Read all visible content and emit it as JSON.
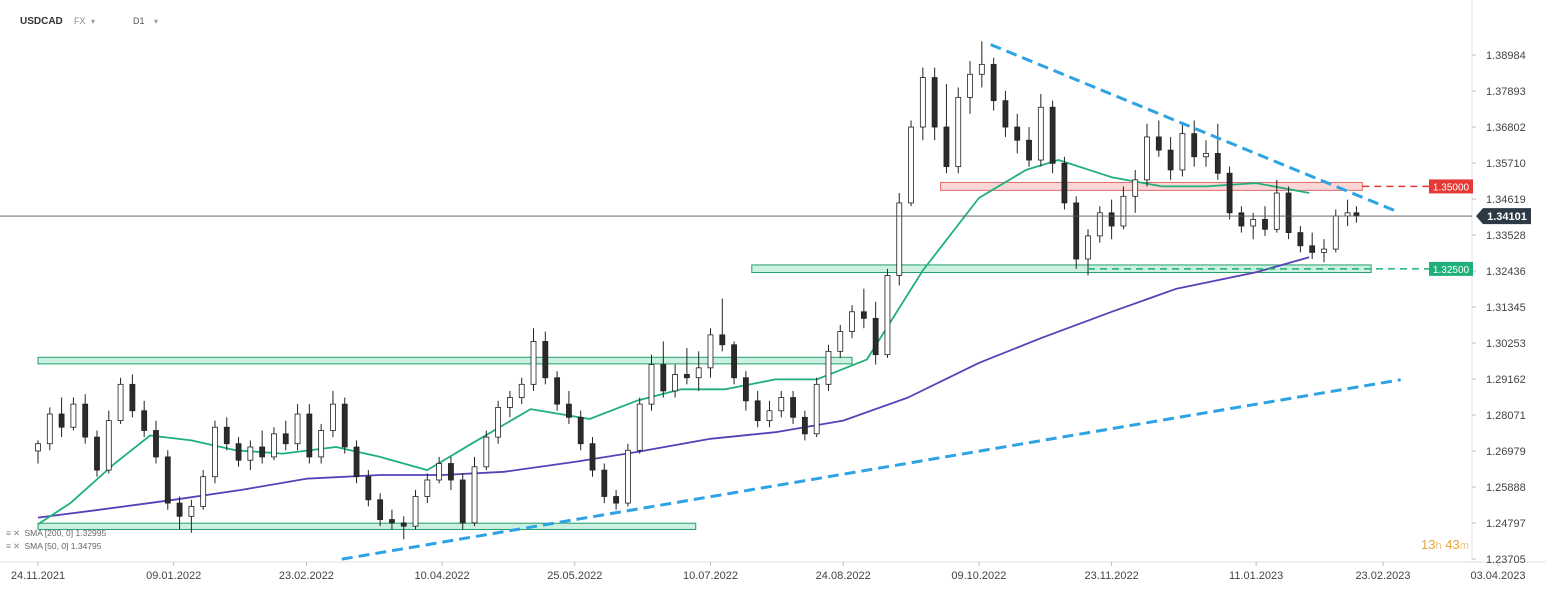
{
  "header": {
    "symbol": "USDCAD",
    "market": "FX",
    "timeframe": "D1"
  },
  "indicators": [
    {
      "label": "SMA [200, 0] 1.32995",
      "color": "#5b3fb8"
    },
    {
      "label": "SMA [50, 0] 1.34795",
      "color": "#1fb07a"
    }
  ],
  "timer": {
    "hours": "13",
    "h_unit": "h",
    "minutes": "43",
    "m_unit": "m"
  },
  "chart_data": {
    "type": "candlestick",
    "instrument": "USDCAD",
    "timeframe": "D1",
    "y_ticks": [
      "1.38984",
      "1.37893",
      "1.36802",
      "1.35710",
      "1.34619",
      "1.33528",
      "1.32436",
      "1.31345",
      "1.30253",
      "1.29162",
      "1.28071",
      "1.26979",
      "1.25888",
      "1.24797",
      "1.23705"
    ],
    "x_ticks": [
      "24.11.2021",
      "09.01.2022",
      "23.02.2022",
      "10.04.2022",
      "25.05.2022",
      "10.07.2022",
      "24.08.2022",
      "09.10.2022",
      "23.11.2022",
      "11.01.2023",
      "23.02.2023",
      "03.04.2023"
    ],
    "last_price": "1.34101",
    "price_tags": [
      {
        "label": "1.35000",
        "value": 1.35,
        "color": "#e53935"
      },
      {
        "label": "1.32500",
        "value": 1.325,
        "color": "#1fb07a"
      }
    ],
    "zones": [
      {
        "kind": "resistance",
        "from_date": "2022-09-26",
        "to_date": "2023-02-16",
        "low": 1.3488,
        "high": 1.3512,
        "color": "#f3a5a5"
      },
      {
        "kind": "support",
        "from_date": "2022-07-24",
        "to_date": "2023-02-19",
        "low": 1.3239,
        "high": 1.3262,
        "color": "#8fe0bd"
      },
      {
        "kind": "support",
        "from_date": "2021-11-24",
        "to_date": "2022-08-27",
        "low": 1.2962,
        "high": 1.2982,
        "color": "#8fe0bd"
      },
      {
        "kind": "support",
        "from_date": "2021-11-24",
        "to_date": "2022-07-05",
        "low": 1.246,
        "high": 1.2479,
        "color": "#8fe0bd"
      }
    ],
    "trendlines": [
      {
        "name": "downtrend",
        "p1": [
          "2022-10-13",
          1.393
        ],
        "p2": [
          "2023-02-28",
          1.3423
        ]
      },
      {
        "name": "uptrend",
        "p1": [
          "2022-03-07",
          1.237
        ],
        "p2": [
          "2023-03-01",
          1.2914
        ]
      }
    ],
    "levels": [
      {
        "value": 1.35,
        "from_date": "2023-02-16",
        "to_date": "2023-03-16",
        "color": "#e53935"
      },
      {
        "value": 1.325,
        "from_date": "2022-11-15",
        "to_date": "2023-03-16",
        "color": "#1fb07a"
      }
    ],
    "sma200": [
      [
        "2021-11-24",
        1.2496
      ],
      [
        "2021-12-15",
        1.252
      ],
      [
        "2022-01-09",
        1.255
      ],
      [
        "2022-02-01",
        1.258
      ],
      [
        "2022-02-23",
        1.2614
      ],
      [
        "2022-03-20",
        1.2625
      ],
      [
        "2022-04-10",
        1.2625
      ],
      [
        "2022-05-01",
        1.2635
      ],
      [
        "2022-05-25",
        1.2665
      ],
      [
        "2022-06-15",
        1.2695
      ],
      [
        "2022-07-10",
        1.2735
      ],
      [
        "2022-08-01",
        1.2755
      ],
      [
        "2022-08-24",
        1.279
      ],
      [
        "2022-09-15",
        1.286
      ],
      [
        "2022-10-09",
        1.2965
      ],
      [
        "2022-10-30",
        1.304
      ],
      [
        "2022-11-23",
        1.312
      ],
      [
        "2022-12-15",
        1.319
      ],
      [
        "2023-01-11",
        1.324
      ],
      [
        "2023-01-29",
        1.3285
      ]
    ],
    "sma50": [
      [
        "2021-11-24",
        1.2476
      ],
      [
        "2021-12-05",
        1.254
      ],
      [
        "2021-12-20",
        1.266
      ],
      [
        "2022-01-01",
        1.2745
      ],
      [
        "2022-01-15",
        1.273
      ],
      [
        "2022-01-30",
        1.27
      ],
      [
        "2022-02-15",
        1.269
      ],
      [
        "2022-03-05",
        1.271
      ],
      [
        "2022-03-20",
        1.268
      ],
      [
        "2022-04-05",
        1.264
      ],
      [
        "2022-04-20",
        1.272
      ],
      [
        "2022-05-10",
        1.2825
      ],
      [
        "2022-05-30",
        1.2795
      ],
      [
        "2022-06-15",
        1.285
      ],
      [
        "2022-06-30",
        1.2885
      ],
      [
        "2022-07-15",
        1.2885
      ],
      [
        "2022-08-01",
        1.2915
      ],
      [
        "2022-08-15",
        1.2915
      ],
      [
        "2022-09-01",
        1.2975
      ],
      [
        "2022-09-20",
        1.3245
      ],
      [
        "2022-10-09",
        1.3465
      ],
      [
        "2022-10-25",
        1.355
      ],
      [
        "2022-11-05",
        1.358
      ],
      [
        "2022-11-23",
        1.3528
      ],
      [
        "2022-12-10",
        1.35
      ],
      [
        "2022-12-25",
        1.35
      ],
      [
        "2023-01-11",
        1.351
      ],
      [
        "2023-01-29",
        1.348
      ]
    ],
    "candles": [
      [
        "2021-11-24",
        1.2698,
        1.273,
        1.266,
        1.272
      ],
      [
        "2021-11-28",
        1.272,
        1.283,
        1.27,
        1.281
      ],
      [
        "2021-12-02",
        1.281,
        1.286,
        1.274,
        1.277
      ],
      [
        "2021-12-06",
        1.277,
        1.286,
        1.276,
        1.284
      ],
      [
        "2021-12-10",
        1.284,
        1.287,
        1.272,
        1.274
      ],
      [
        "2021-12-14",
        1.274,
        1.276,
        1.262,
        1.264
      ],
      [
        "2021-12-18",
        1.264,
        1.282,
        1.263,
        1.279
      ],
      [
        "2021-12-22",
        1.279,
        1.292,
        1.278,
        1.29
      ],
      [
        "2021-12-26",
        1.29,
        1.293,
        1.28,
        1.282
      ],
      [
        "2021-12-30",
        1.282,
        1.285,
        1.274,
        1.276
      ],
      [
        "2022-01-03",
        1.276,
        1.279,
        1.266,
        1.268
      ],
      [
        "2022-01-07",
        1.268,
        1.27,
        1.252,
        1.254
      ],
      [
        "2022-01-11",
        1.254,
        1.256,
        1.246,
        1.25
      ],
      [
        "2022-01-15",
        1.25,
        1.255,
        1.245,
        1.253
      ],
      [
        "2022-01-19",
        1.253,
        1.264,
        1.252,
        1.262
      ],
      [
        "2022-01-23",
        1.262,
        1.279,
        1.26,
        1.277
      ],
      [
        "2022-01-27",
        1.277,
        1.28,
        1.27,
        1.272
      ],
      [
        "2022-01-31",
        1.272,
        1.274,
        1.265,
        1.267
      ],
      [
        "2022-02-04",
        1.267,
        1.273,
        1.264,
        1.271
      ],
      [
        "2022-02-08",
        1.271,
        1.276,
        1.266,
        1.268
      ],
      [
        "2022-02-12",
        1.268,
        1.277,
        1.267,
        1.275
      ],
      [
        "2022-02-16",
        1.275,
        1.279,
        1.27,
        1.272
      ],
      [
        "2022-02-20",
        1.272,
        1.284,
        1.27,
        1.281
      ],
      [
        "2022-02-24",
        1.281,
        1.284,
        1.266,
        1.268
      ],
      [
        "2022-02-28",
        1.268,
        1.278,
        1.266,
        1.276
      ],
      [
        "2022-03-04",
        1.276,
        1.288,
        1.274,
        1.284
      ],
      [
        "2022-03-08",
        1.284,
        1.286,
        1.269,
        1.271
      ],
      [
        "2022-03-12",
        1.271,
        1.273,
        1.26,
        1.262
      ],
      [
        "2022-03-16",
        1.262,
        1.264,
        1.253,
        1.255
      ],
      [
        "2022-03-20",
        1.255,
        1.257,
        1.247,
        1.249
      ],
      [
        "2022-03-24",
        1.249,
        1.252,
        1.246,
        1.248
      ],
      [
        "2022-03-28",
        1.248,
        1.25,
        1.243,
        1.247
      ],
      [
        "2022-04-01",
        1.247,
        1.258,
        1.246,
        1.256
      ],
      [
        "2022-04-05",
        1.256,
        1.263,
        1.254,
        1.261
      ],
      [
        "2022-04-09",
        1.261,
        1.268,
        1.26,
        1.266
      ],
      [
        "2022-04-13",
        1.266,
        1.268,
        1.258,
        1.261
      ],
      [
        "2022-04-17",
        1.261,
        1.263,
        1.246,
        1.248
      ],
      [
        "2022-04-21",
        1.248,
        1.268,
        1.247,
        1.265
      ],
      [
        "2022-04-25",
        1.265,
        1.276,
        1.264,
        1.274
      ],
      [
        "2022-04-29",
        1.274,
        1.285,
        1.272,
        1.283
      ],
      [
        "2022-05-03",
        1.283,
        1.288,
        1.28,
        1.286
      ],
      [
        "2022-05-07",
        1.286,
        1.292,
        1.284,
        1.29
      ],
      [
        "2022-05-11",
        1.29,
        1.307,
        1.288,
        1.303
      ],
      [
        "2022-05-15",
        1.303,
        1.306,
        1.29,
        1.292
      ],
      [
        "2022-05-19",
        1.292,
        1.294,
        1.282,
        1.284
      ],
      [
        "2022-05-23",
        1.284,
        1.288,
        1.278,
        1.28
      ],
      [
        "2022-05-27",
        1.28,
        1.282,
        1.27,
        1.272
      ],
      [
        "2022-05-31",
        1.272,
        1.274,
        1.262,
        1.264
      ],
      [
        "2022-06-04",
        1.264,
        1.266,
        1.254,
        1.256
      ],
      [
        "2022-06-08",
        1.256,
        1.258,
        1.252,
        1.254
      ],
      [
        "2022-06-12",
        1.254,
        1.272,
        1.253,
        1.27
      ],
      [
        "2022-06-16",
        1.27,
        1.286,
        1.269,
        1.284
      ],
      [
        "2022-06-20",
        1.284,
        1.299,
        1.282,
        1.296
      ],
      [
        "2022-06-24",
        1.296,
        1.303,
        1.286,
        1.288
      ],
      [
        "2022-06-28",
        1.288,
        1.296,
        1.286,
        1.293
      ],
      [
        "2022-07-02",
        1.293,
        1.301,
        1.29,
        1.292
      ],
      [
        "2022-07-06",
        1.292,
        1.3,
        1.288,
        1.295
      ],
      [
        "2022-07-10",
        1.295,
        1.307,
        1.292,
        1.305
      ],
      [
        "2022-07-14",
        1.305,
        1.316,
        1.3,
        1.302
      ],
      [
        "2022-07-18",
        1.302,
        1.303,
        1.29,
        1.292
      ],
      [
        "2022-07-22",
        1.292,
        1.294,
        1.282,
        1.285
      ],
      [
        "2022-07-26",
        1.285,
        1.288,
        1.277,
        1.279
      ],
      [
        "2022-07-30",
        1.279,
        1.285,
        1.277,
        1.282
      ],
      [
        "2022-08-03",
        1.282,
        1.288,
        1.28,
        1.286
      ],
      [
        "2022-08-07",
        1.286,
        1.288,
        1.278,
        1.28
      ],
      [
        "2022-08-11",
        1.28,
        1.282,
        1.273,
        1.275
      ],
      [
        "2022-08-15",
        1.275,
        1.292,
        1.274,
        1.29
      ],
      [
        "2022-08-19",
        1.29,
        1.302,
        1.288,
        1.3
      ],
      [
        "2022-08-23",
        1.3,
        1.308,
        1.298,
        1.306
      ],
      [
        "2022-08-27",
        1.306,
        1.314,
        1.304,
        1.312
      ],
      [
        "2022-08-31",
        1.312,
        1.319,
        1.307,
        1.31
      ],
      [
        "2022-09-04",
        1.31,
        1.315,
        1.296,
        1.299
      ],
      [
        "2022-09-08",
        1.299,
        1.325,
        1.298,
        1.323
      ],
      [
        "2022-09-12",
        1.323,
        1.348,
        1.32,
        1.345
      ],
      [
        "2022-09-16",
        1.345,
        1.37,
        1.344,
        1.368
      ],
      [
        "2022-09-20",
        1.368,
        1.386,
        1.364,
        1.383
      ],
      [
        "2022-09-24",
        1.383,
        1.386,
        1.364,
        1.368
      ],
      [
        "2022-09-28",
        1.368,
        1.381,
        1.354,
        1.356
      ],
      [
        "2022-10-02",
        1.356,
        1.38,
        1.354,
        1.377
      ],
      [
        "2022-10-06",
        1.377,
        1.388,
        1.372,
        1.384
      ],
      [
        "2022-10-10",
        1.384,
        1.394,
        1.38,
        1.387
      ],
      [
        "2022-10-14",
        1.387,
        1.389,
        1.373,
        1.376
      ],
      [
        "2022-10-18",
        1.376,
        1.379,
        1.365,
        1.368
      ],
      [
        "2022-10-22",
        1.368,
        1.372,
        1.36,
        1.364
      ],
      [
        "2022-10-26",
        1.364,
        1.368,
        1.356,
        1.358
      ],
      [
        "2022-10-30",
        1.358,
        1.378,
        1.356,
        1.374
      ],
      [
        "2022-11-03",
        1.374,
        1.376,
        1.354,
        1.357
      ],
      [
        "2022-11-07",
        1.357,
        1.359,
        1.343,
        1.345
      ],
      [
        "2022-11-11",
        1.345,
        1.347,
        1.325,
        1.328
      ],
      [
        "2022-11-15",
        1.328,
        1.337,
        1.323,
        1.335
      ],
      [
        "2022-11-19",
        1.335,
        1.344,
        1.333,
        1.342
      ],
      [
        "2022-11-23",
        1.342,
        1.346,
        1.334,
        1.338
      ],
      [
        "2022-11-27",
        1.338,
        1.35,
        1.337,
        1.347
      ],
      [
        "2022-12-01",
        1.347,
        1.355,
        1.342,
        1.352
      ],
      [
        "2022-12-05",
        1.352,
        1.369,
        1.35,
        1.365
      ],
      [
        "2022-12-09",
        1.365,
        1.37,
        1.359,
        1.361
      ],
      [
        "2022-12-13",
        1.361,
        1.365,
        1.352,
        1.355
      ],
      [
        "2022-12-17",
        1.355,
        1.369,
        1.353,
        1.366
      ],
      [
        "2022-12-21",
        1.366,
        1.37,
        1.356,
        1.359
      ],
      [
        "2022-12-25",
        1.359,
        1.364,
        1.356,
        1.36
      ],
      [
        "2022-12-29",
        1.36,
        1.369,
        1.352,
        1.354
      ],
      [
        "2023-01-02",
        1.354,
        1.356,
        1.34,
        1.342
      ],
      [
        "2023-01-06",
        1.342,
        1.344,
        1.336,
        1.338
      ],
      [
        "2023-01-10",
        1.338,
        1.342,
        1.334,
        1.34
      ],
      [
        "2023-01-14",
        1.34,
        1.344,
        1.335,
        1.337
      ],
      [
        "2023-01-18",
        1.337,
        1.352,
        1.336,
        1.348
      ],
      [
        "2023-01-22",
        1.348,
        1.35,
        1.334,
        1.336
      ],
      [
        "2023-01-26",
        1.336,
        1.338,
        1.33,
        1.332
      ],
      [
        "2023-01-30",
        1.332,
        1.336,
        1.328,
        1.33
      ],
      [
        "2023-02-03",
        1.33,
        1.334,
        1.327,
        1.331
      ],
      [
        "2023-02-07",
        1.331,
        1.343,
        1.33,
        1.341
      ],
      [
        "2023-02-11",
        1.341,
        1.346,
        1.338,
        1.342
      ],
      [
        "2023-02-14",
        1.342,
        1.344,
        1.339,
        1.341
      ]
    ]
  }
}
